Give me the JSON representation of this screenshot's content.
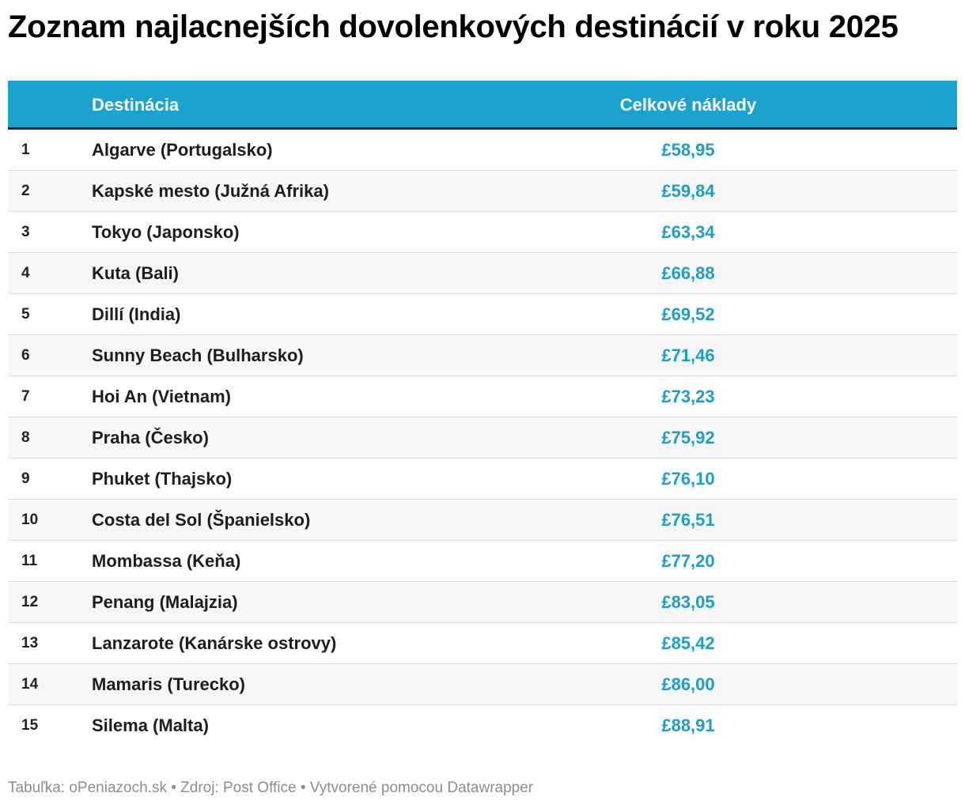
{
  "title": "Zoznam najlacnejších dovolenkových destinácií v roku 2025",
  "colors": {
    "header_bg": "#1aa3cf",
    "cost_text": "#1a9fcb",
    "alt_row_bg": "#f6f6f6",
    "footer_text": "#8c8c8c"
  },
  "chart_data": {
    "type": "table",
    "title": "Zoznam najlacnejších dovolenkových destinácií v roku 2025",
    "columns": [
      "",
      "Destinácia",
      "Celkové náklady"
    ],
    "rows": [
      {
        "rank": "1",
        "destination": "Algarve (Portugalsko)",
        "cost": "£58,95"
      },
      {
        "rank": "2",
        "destination": "Kapské mesto (Južná Afrika)",
        "cost": "£59,84"
      },
      {
        "rank": "3",
        "destination": "Tokyo (Japonsko)",
        "cost": "£63,34"
      },
      {
        "rank": "4",
        "destination": "Kuta (Bali)",
        "cost": "£66,88"
      },
      {
        "rank": "5",
        "destination": "Dillí (India)",
        "cost": "£69,52"
      },
      {
        "rank": "6",
        "destination": "Sunny Beach (Bulharsko)",
        "cost": "£71,46"
      },
      {
        "rank": "7",
        "destination": "Hoi An (Vietnam)",
        "cost": "£73,23"
      },
      {
        "rank": "8",
        "destination": "Praha (Česko)",
        "cost": "£75,92"
      },
      {
        "rank": "9",
        "destination": "Phuket (Thajsko)",
        "cost": "£76,10"
      },
      {
        "rank": "10",
        "destination": "Costa del Sol (Španielsko)",
        "cost": "£76,51"
      },
      {
        "rank": "11",
        "destination": "Mombassa (Keňa)",
        "cost": "£77,20"
      },
      {
        "rank": "12",
        "destination": "Penang (Malajzia)",
        "cost": "£83,05"
      },
      {
        "rank": "13",
        "destination": "Lanzarote (Kanárske ostrovy)",
        "cost": "£85,42"
      },
      {
        "rank": "14",
        "destination": "Mamaris (Turecko)",
        "cost": "£86,00"
      },
      {
        "rank": "15",
        "destination": "Silema (Malta)",
        "cost": "£88,91"
      }
    ]
  },
  "footer": "Tabuľka: oPeniazoch.sk • Zdroj: Post Office • Vytvorené pomocou Datawrapper"
}
